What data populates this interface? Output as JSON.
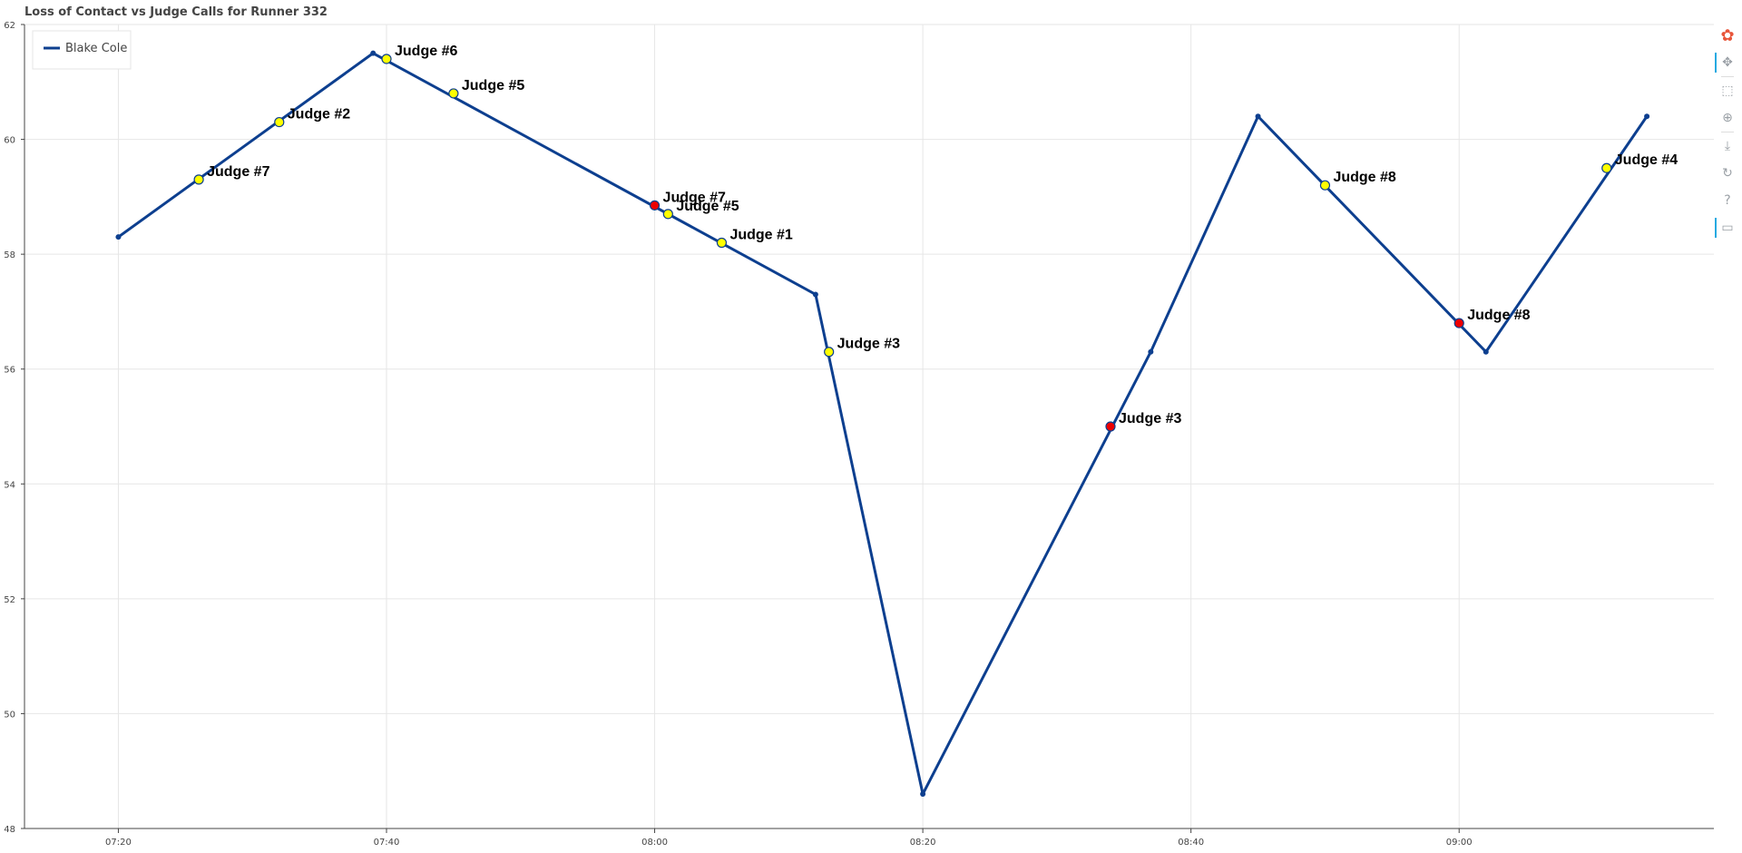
{
  "chart_data": {
    "type": "line",
    "title": "Loss of Contact vs Judge Calls for Runner 332",
    "xlabel": "",
    "ylabel": "",
    "xlim": [
      "07:13",
      "09:19"
    ],
    "ylim": [
      48,
      62
    ],
    "x_ticks": [
      "07:20",
      "07:40",
      "08:00",
      "08:20",
      "08:40",
      "09:00"
    ],
    "y_ticks": [
      48,
      50,
      52,
      54,
      56,
      58,
      60,
      62
    ],
    "grid": true,
    "legend": {
      "location": "top-left",
      "entries": [
        "Blake Cole"
      ]
    },
    "series": [
      {
        "name": "Blake Cole",
        "color": "#0d3f8f",
        "points": [
          {
            "x": "07:20",
            "y": 58.3
          },
          {
            "x": "07:39",
            "y": 61.5
          },
          {
            "x": "08:12",
            "y": 57.3
          },
          {
            "x": "08:20",
            "y": 48.6
          },
          {
            "x": "08:37",
            "y": 56.3
          },
          {
            "x": "08:45",
            "y": 60.4
          },
          {
            "x": "09:02",
            "y": 56.3
          },
          {
            "x": "09:14",
            "y": 60.4
          }
        ]
      }
    ],
    "judge_calls": [
      {
        "x": "07:26",
        "y": 59.3,
        "label": "Judge #7",
        "color": "#ffff00"
      },
      {
        "x": "07:32",
        "y": 60.3,
        "label": "Judge #2",
        "color": "#ffff00"
      },
      {
        "x": "07:40",
        "y": 61.4,
        "label": "Judge #6",
        "color": "#ffff00"
      },
      {
        "x": "07:45",
        "y": 60.8,
        "label": "Judge #5",
        "color": "#ffff00"
      },
      {
        "x": "08:00",
        "y": 58.85,
        "label": "Judge #7",
        "color": "#ee0000"
      },
      {
        "x": "08:01",
        "y": 58.7,
        "label": "Judge #5",
        "color": "#ffff00"
      },
      {
        "x": "08:05",
        "y": 58.2,
        "label": "Judge #1",
        "color": "#ffff00"
      },
      {
        "x": "08:13",
        "y": 56.3,
        "label": "Judge #3",
        "color": "#ffff00"
      },
      {
        "x": "08:34",
        "y": 55.0,
        "label": "Judge #3",
        "color": "#ee0000"
      },
      {
        "x": "08:50",
        "y": 59.2,
        "label": "Judge #8",
        "color": "#ffff00"
      },
      {
        "x": "09:00",
        "y": 56.8,
        "label": "Judge #8",
        "color": "#ee0000"
      },
      {
        "x": "09:11",
        "y": 59.5,
        "label": "Judge #4",
        "color": "#ffff00"
      }
    ]
  },
  "toolbar": {
    "tools": [
      {
        "icon": "bokeh-logo-icon",
        "glyph": "✿"
      },
      {
        "icon": "pan-icon",
        "glyph": "✥"
      },
      {
        "icon": "box-zoom-icon",
        "glyph": "⬚"
      },
      {
        "icon": "wheel-zoom-icon",
        "glyph": "⊕"
      },
      {
        "icon": "save-icon",
        "glyph": "⤓"
      },
      {
        "icon": "reset-icon",
        "glyph": "↻"
      },
      {
        "icon": "help-icon",
        "glyph": "?"
      },
      {
        "icon": "hover-icon",
        "glyph": "▭"
      }
    ]
  }
}
